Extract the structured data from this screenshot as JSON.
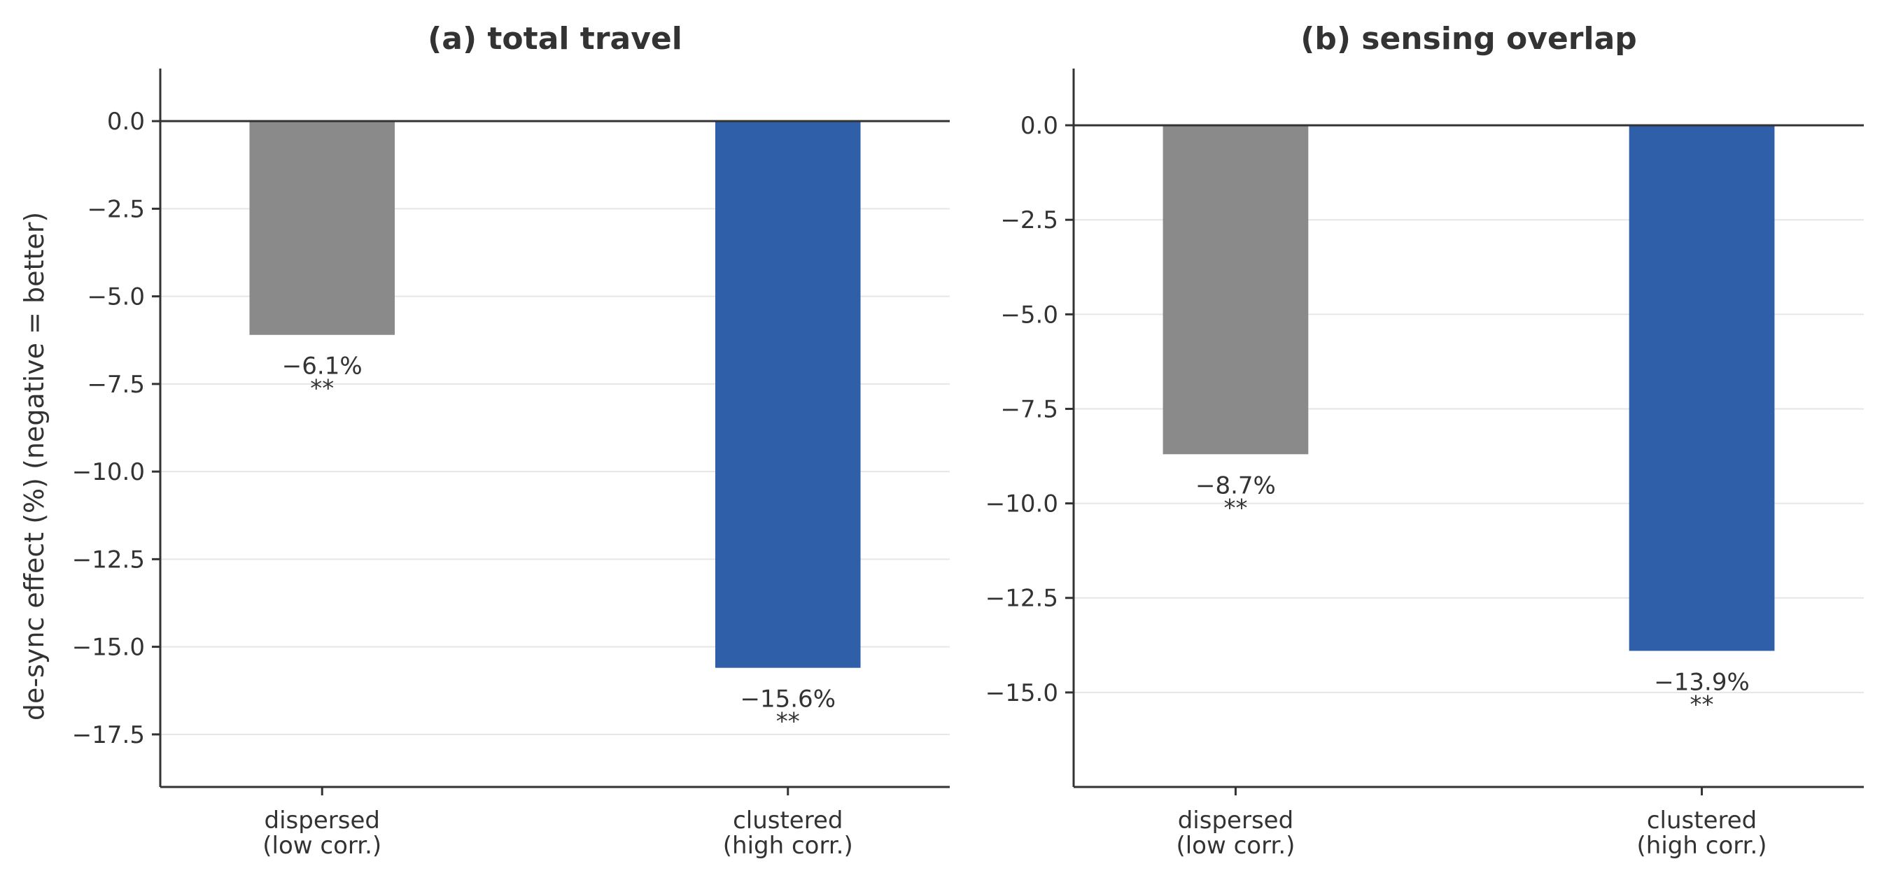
{
  "chart_data": [
    {
      "type": "bar",
      "title": "(a) total travel",
      "ylabel": "de-sync effect (%)  (negative = better)",
      "xlabel": "",
      "categories": [
        "dispersed\n(low corr.)",
        "clustered\n(high corr.)"
      ],
      "values": [
        -6.1,
        -15.6
      ],
      "bar_labels": [
        "−6.1%",
        "−15.6%"
      ],
      "significance": [
        "**",
        "**"
      ],
      "colors": [
        "#8a8a8a",
        "#2e5fa8"
      ],
      "ylim": [
        -19.0,
        1.5
      ],
      "yticks": [
        0.0,
        -2.5,
        -5.0,
        -7.5,
        -10.0,
        -12.5,
        -15.0,
        -17.5
      ],
      "ytick_labels": [
        "0.0",
        "−2.5",
        "−5.0",
        "−7.5",
        "−10.0",
        "−12.5",
        "−15.0",
        "−17.5"
      ],
      "grid": true,
      "legend": "none"
    },
    {
      "type": "bar",
      "title": "(b) sensing overlap",
      "ylabel": "",
      "xlabel": "",
      "categories": [
        "dispersed\n(low corr.)",
        "clustered\n(high corr.)"
      ],
      "values": [
        -8.7,
        -13.9
      ],
      "bar_labels": [
        "−8.7%",
        "−13.9%"
      ],
      "significance": [
        "**",
        "**"
      ],
      "colors": [
        "#8a8a8a",
        "#2e5fa8"
      ],
      "ylim": [
        -17.5,
        1.5
      ],
      "yticks": [
        0.0,
        -2.5,
        -5.0,
        -7.5,
        -10.0,
        -12.5,
        -15.0
      ],
      "ytick_labels": [
        "0.0",
        "−2.5",
        "−5.0",
        "−7.5",
        "−10.0",
        "−12.5",
        "−15.0"
      ],
      "grid": true,
      "legend": "none"
    }
  ]
}
